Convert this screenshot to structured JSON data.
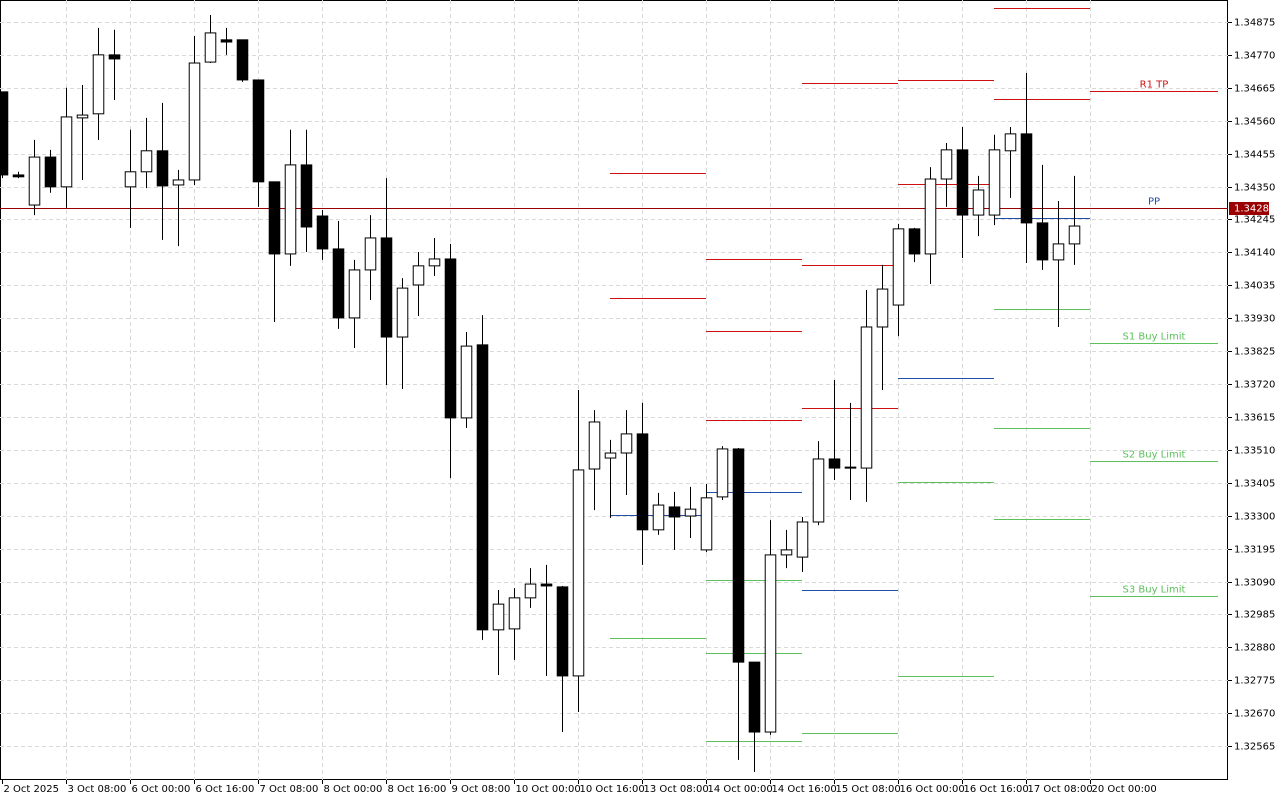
{
  "chart_data": {
    "type": "candlestick",
    "open": [
      1.34652,
      1.34387,
      1.34291,
      1.34444,
      1.34349,
      1.34569,
      1.34582,
      1.3477,
      1.34349,
      1.34397,
      1.34464,
      1.34355,
      1.34371,
      1.34747,
      1.34818,
      1.34818,
      1.3469,
      1.34365,
      1.34135,
      1.34419,
      1.34256,
      1.34151,
      1.33931,
      1.34084,
      1.34186,
      1.3387,
      1.34036,
      1.34097,
      1.34119,
      1.33612,
      1.33845,
      1.32936,
      1.32939,
      1.33038,
      1.33082,
      1.33073,
      1.32789,
      1.33449,
      1.33484,
      1.335,
      1.33561,
      1.33255,
      1.33328,
      1.33299,
      1.33191,
      1.3336,
      1.33513,
      1.32833,
      1.3261,
      1.33175,
      1.33168,
      1.3328,
      1.33481,
      1.33452,
      1.33452,
      1.33902,
      1.33972,
      1.34215,
      1.34135,
      1.34374,
      1.34467,
      1.34259,
      1.34259,
      1.34464,
      1.34518,
      1.34234,
      1.34116,
      1.34167
    ],
    "high": [
      1.34652,
      1.34397,
      1.34499,
      1.34467,
      1.34665,
      1.34674,
      1.34856,
      1.3485,
      1.34531,
      1.34569,
      1.34617,
      1.34403,
      1.3483,
      1.34897,
      1.34856,
      1.34818,
      1.3469,
      1.34365,
      1.34531,
      1.34531,
      1.34275,
      1.3424,
      1.34116,
      1.34259,
      1.34377,
      1.34058,
      1.34141,
      1.34186,
      1.34167,
      1.33886,
      1.3394,
      1.33063,
      1.33069,
      1.33133,
      1.33143,
      1.33076,
      1.33701,
      1.33637,
      1.33542,
      1.33637,
      1.3366,
      1.33373,
      1.33376,
      1.33392,
      1.33401,
      1.33522,
      1.33516,
      1.32833,
      1.33286,
      1.33255,
      1.33296,
      1.33538,
      1.33733,
      1.3366,
      1.3402,
      1.341,
      1.34231,
      1.34218,
      1.34412,
      1.34489,
      1.3454,
      1.34384,
      1.34515,
      1.3454,
      1.34712,
      1.34419,
      1.34304,
      1.34384
    ],
    "low": [
      1.34377,
      1.34377,
      1.34259,
      1.3433,
      1.34282,
      1.34371,
      1.34499,
      1.34626,
      1.34218,
      1.34345,
      1.3418,
      1.3416,
      1.34355,
      1.34744,
      1.3477,
      1.34684,
      1.34285,
      1.33918,
      1.34097,
      1.34141,
      1.34116,
      1.33896,
      1.33835,
      1.33988,
      1.33717,
      1.33704,
      1.33937,
      1.34065,
      1.3342,
      1.3358,
      1.32904,
      1.32792,
      1.3284,
      1.33006,
      1.32789,
      1.3261,
      1.32674,
      1.33318,
      1.33293,
      1.33366,
      1.33143,
      1.33239,
      1.33191,
      1.33229,
      1.33184,
      1.3335,
      1.32521,
      1.32483,
      1.32601,
      1.33133,
      1.33121,
      1.3327,
      1.33414,
      1.3335,
      1.33344,
      1.33701,
      1.33873,
      1.34109,
      1.34039,
      1.34285,
      1.34122,
      1.34192,
      1.34227,
      1.34314,
      1.34106,
      1.34084,
      1.33902,
      1.341
    ],
    "close": [
      1.34387,
      1.34381,
      1.34444,
      1.34349,
      1.34572,
      1.34578,
      1.3477,
      1.34757,
      1.34397,
      1.34464,
      1.34352,
      1.34371,
      1.34744,
      1.3484,
      1.34811,
      1.3469,
      1.34365,
      1.34135,
      1.34419,
      1.34221,
      1.34151,
      1.33931,
      1.34084,
      1.34186,
      1.3387,
      1.34026,
      1.34097,
      1.34119,
      1.33612,
      1.33841,
      1.32936,
      1.33018,
      1.33038,
      1.33082,
      1.33076,
      1.32789,
      1.33446,
      1.33599,
      1.335,
      1.33561,
      1.33255,
      1.33334,
      1.33296,
      1.33321,
      1.33357,
      1.33513,
      1.32833,
      1.3261,
      1.33175,
      1.33191,
      1.3328,
      1.33481,
      1.33452,
      1.33455,
      1.33902,
      1.34023,
      1.34215,
      1.34135,
      1.34374,
      1.34467,
      1.34259,
      1.34339,
      1.34467,
      1.34518,
      1.34234,
      1.34116,
      1.34167,
      1.34224
    ],
    "up_color": "#ffffff",
    "down_color": "#000000",
    "xlim": [
      -0.125,
      76.625
    ],
    "xticks": [
      {
        "value": 0,
        "label": "2 Oct 2025"
      },
      {
        "value": 4,
        "label": "3 Oct 08:00"
      },
      {
        "value": 8,
        "label": "6 Oct 00:00"
      },
      {
        "value": 12,
        "label": "6 Oct 16:00"
      },
      {
        "value": 16,
        "label": "7 Oct 08:00"
      },
      {
        "value": 20,
        "label": "8 Oct 00:00"
      },
      {
        "value": 24,
        "label": "8 Oct 16:00"
      },
      {
        "value": 28,
        "label": "9 Oct 08:00"
      },
      {
        "value": 32,
        "label": "10 Oct 00:00"
      },
      {
        "value": 36,
        "label": "10 Oct 16:00"
      },
      {
        "value": 40,
        "label": "13 Oct 08:00"
      },
      {
        "value": 44,
        "label": "14 Oct 00:00"
      },
      {
        "value": 48,
        "label": "14 Oct 16:00"
      },
      {
        "value": 52,
        "label": "15 Oct 08:00"
      },
      {
        "value": 56,
        "label": "16 Oct 00:00"
      },
      {
        "value": 60,
        "label": "16 Oct 16:00"
      },
      {
        "value": 64,
        "label": "17 Oct 08:00"
      },
      {
        "value": 68,
        "label": "20 Oct 00:00"
      }
    ],
    "ylim": [
      1.32457,
      1.34945
    ],
    "yticks": [
      1.34875,
      {
        "value": 1.3477,
        "label": "1.34770"
      },
      1.34665,
      {
        "value": 1.3456,
        "label": "1.34560"
      },
      1.34455,
      {
        "value": 1.3435,
        "label": "1.34350"
      },
      1.34245,
      {
        "value": 1.3414,
        "label": "1.34140"
      },
      1.34035,
      {
        "value": 1.3393,
        "label": "1.33930"
      },
      1.33825,
      {
        "value": 1.3372,
        "label": "1.33720"
      },
      1.33615,
      {
        "value": 1.3351,
        "label": "1.33510"
      },
      1.33405,
      {
        "value": 1.333,
        "label": "1.33300"
      },
      1.33195,
      {
        "value": 1.3309,
        "label": "1.33090"
      },
      1.32985,
      {
        "value": 1.3288,
        "label": "1.32880"
      },
      1.32775,
      {
        "value": 1.3267,
        "label": "1.32670"
      },
      1.32565
    ],
    "grid": true,
    "last_price": 1.34283,
    "last_price_color": "#9b0000",
    "levels": [
      {
        "x": [
          38,
          44
        ],
        "value": 1.34393,
        "color": "#d01010"
      },
      {
        "x": [
          38,
          44
        ],
        "value": 1.33995,
        "color": "#d01010"
      },
      {
        "x": [
          38,
          44
        ],
        "value": 1.33302,
        "color": "#1f4fa8"
      },
      {
        "x": [
          38,
          44
        ],
        "value": 1.3291,
        "color": "#5cc15c"
      },
      {
        "x": [
          44,
          50
        ],
        "value": 1.34119,
        "color": "#d01010"
      },
      {
        "x": [
          44,
          50
        ],
        "value": 1.33889,
        "color": "#d01010"
      },
      {
        "x": [
          44,
          50
        ],
        "value": 1.33605,
        "color": "#d01010"
      },
      {
        "x": [
          44,
          50
        ],
        "value": 1.33376,
        "color": "#1f4fa8"
      },
      {
        "x": [
          44,
          50
        ],
        "value": 1.33095,
        "color": "#5cc15c"
      },
      {
        "x": [
          44,
          50
        ],
        "value": 1.32862,
        "color": "#5cc15c"
      },
      {
        "x": [
          44,
          50
        ],
        "value": 1.32581,
        "color": "#5cc15c"
      },
      {
        "x": [
          50,
          56
        ],
        "value": 1.3468,
        "color": "#d01010"
      },
      {
        "x": [
          50,
          56
        ],
        "value": 1.341,
        "color": "#d01010"
      },
      {
        "x": [
          50,
          56
        ],
        "value": 1.33644,
        "color": "#d01010"
      },
      {
        "x": [
          50,
          56
        ],
        "value": 1.33063,
        "color": "#1f4fa8"
      },
      {
        "x": [
          50,
          56
        ],
        "value": 1.32607,
        "color": "#5cc15c"
      },
      {
        "x": [
          56,
          62
        ],
        "value": 1.3469,
        "color": "#d01010"
      },
      {
        "x": [
          56,
          62
        ],
        "value": 1.34358,
        "color": "#d01010"
      },
      {
        "x": [
          56,
          62
        ],
        "value": 1.33739,
        "color": "#1f4fa8"
      },
      {
        "x": [
          56,
          62
        ],
        "value": 1.33408,
        "color": "#5cc15c"
      },
      {
        "x": [
          56,
          62
        ],
        "value": 1.32789,
        "color": "#5cc15c"
      },
      {
        "x": [
          62,
          68
        ],
        "value": 1.3492,
        "color": "#d01010"
      },
      {
        "x": [
          62,
          68
        ],
        "value": 1.34629,
        "color": "#d01010"
      },
      {
        "x": [
          62,
          68
        ],
        "value": 1.3425,
        "color": "#1f4fa8"
      },
      {
        "x": [
          62,
          68
        ],
        "value": 1.3396,
        "color": "#5cc15c"
      },
      {
        "x": [
          62,
          68
        ],
        "value": 1.3358,
        "color": "#5cc15c"
      },
      {
        "x": [
          62,
          68
        ],
        "value": 1.3329,
        "color": "#5cc15c"
      },
      {
        "x": [
          68,
          76
        ],
        "value": 1.34655,
        "color": "#d01010",
        "label": "R1 TP"
      },
      {
        "x": [
          68,
          76
        ],
        "value": 1.34282,
        "color": "#1f4fa8",
        "label": "PP"
      },
      {
        "x": [
          68,
          76
        ],
        "value": 1.33851,
        "color": "#5cc15c",
        "label": "S1 Buy Limit"
      },
      {
        "x": [
          68,
          76
        ],
        "value": 1.33475,
        "color": "#5cc15c",
        "label": "S2 Buy Limit"
      },
      {
        "x": [
          68,
          76
        ],
        "value": 1.33044,
        "color": "#5cc15c",
        "label": "S3 Buy Limit"
      }
    ]
  }
}
